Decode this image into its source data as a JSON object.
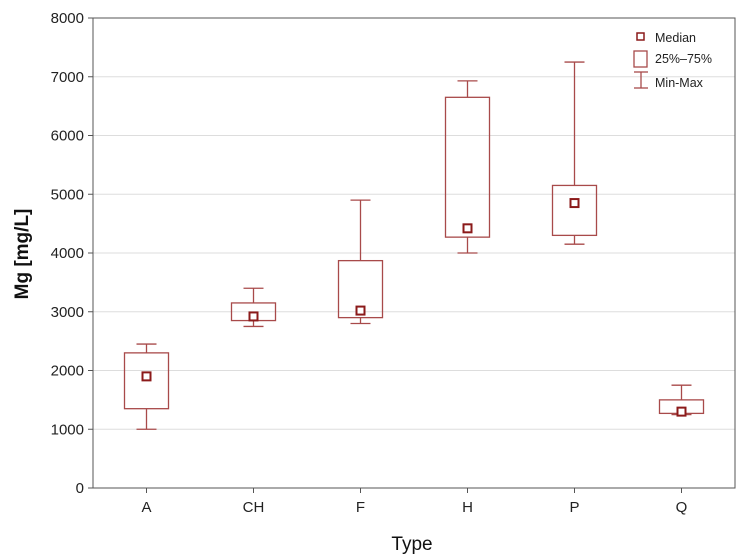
{
  "chart_data": {
    "type": "box",
    "title": "",
    "xlabel": "Type",
    "ylabel": "Mg [mg/L]",
    "ylim": [
      0,
      8000
    ],
    "yticks": [
      0,
      1000,
      2000,
      3000,
      4000,
      5000,
      6000,
      7000,
      8000
    ],
    "grid": true,
    "legend_position": "top-right",
    "categories": [
      "A",
      "CH",
      "F",
      "H",
      "P",
      "Q"
    ],
    "series": [
      {
        "category": "A",
        "min": 1000,
        "q1": 1350,
        "median": 1900,
        "q3": 2300,
        "max": 2450
      },
      {
        "category": "CH",
        "min": 2750,
        "q1": 2850,
        "median": 2920,
        "q3": 3150,
        "max": 3400
      },
      {
        "category": "F",
        "min": 2800,
        "q1": 2900,
        "median": 3020,
        "q3": 3870,
        "max": 4900
      },
      {
        "category": "H",
        "min": 4000,
        "q1": 4270,
        "median": 4420,
        "q3": 6650,
        "max": 6930
      },
      {
        "category": "P",
        "min": 4150,
        "q1": 4300,
        "median": 4850,
        "q3": 5150,
        "max": 7250
      },
      {
        "category": "Q",
        "min": 1250,
        "q1": 1270,
        "median": 1300,
        "q3": 1500,
        "max": 1750
      }
    ],
    "legend": [
      {
        "symbol": "square-marker",
        "label": "Median"
      },
      {
        "symbol": "box",
        "label": "25%–75%"
      },
      {
        "symbol": "whisker",
        "label": "Min-Max"
      }
    ],
    "colors": {
      "box": "#a84a4a",
      "median_fill": "#8b1a1a",
      "grid": "#dddddd",
      "axis": "#555555"
    }
  }
}
